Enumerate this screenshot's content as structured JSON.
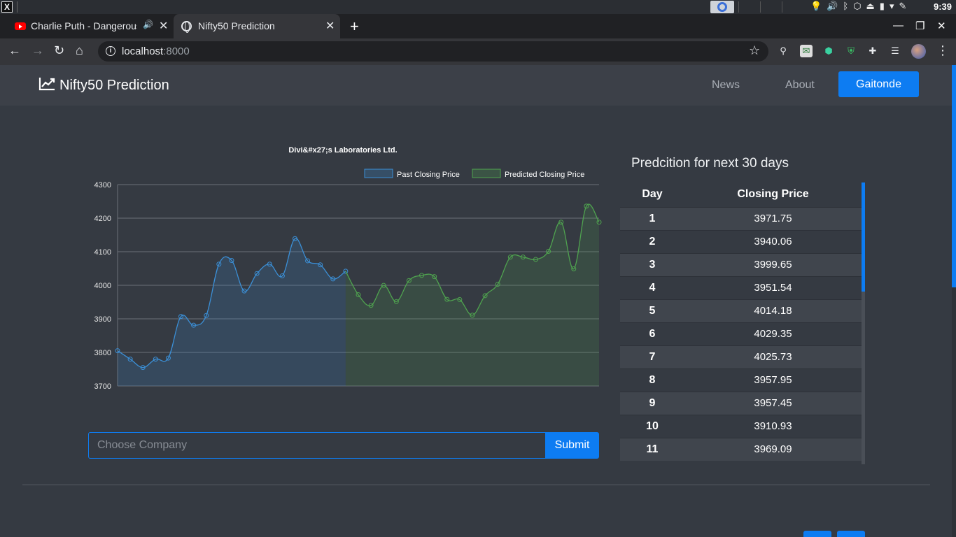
{
  "os": {
    "clock": "9:39"
  },
  "browser": {
    "tabs": [
      {
        "title": "Charlie Puth - Dangerously",
        "active": false,
        "audio": true
      },
      {
        "title": "Nifty50 Prediction",
        "active": true
      }
    ],
    "url_host": "localhost",
    "url_port": ":8000"
  },
  "navbar": {
    "brand": "Nifty50 Prediction",
    "links": [
      "News",
      "About"
    ],
    "user_button": "Gaitonde"
  },
  "colors": {
    "accent": "#0d7cf2",
    "past": "#3b8fd6",
    "predicted": "#4fa34f"
  },
  "chart_data": {
    "type": "line",
    "title": "Divi&#x27;s Laboratories Ltd.",
    "legend": [
      "Past Closing Price",
      "Predicted Closing Price"
    ],
    "legend_position": "top-right",
    "ylim": [
      3700,
      4300
    ],
    "yticks": [
      3700,
      3800,
      3900,
      4000,
      4100,
      4200,
      4300
    ],
    "grid": true,
    "series": [
      {
        "name": "Past Closing Price",
        "x_start": 0,
        "values": [
          3805,
          3780,
          3755,
          3780,
          3783,
          3907,
          3881,
          3910,
          4063,
          4074,
          3983,
          4035,
          4063,
          4028,
          4139,
          4073,
          4061,
          4019,
          4042
        ]
      },
      {
        "name": "Predicted Closing Price",
        "x_start": 18,
        "values": [
          4042,
          3971.75,
          3940.06,
          3999.65,
          3951.54,
          4014.18,
          4029.35,
          4025.73,
          3957.95,
          3957.45,
          3910.93,
          3969.09,
          4003,
          4084,
          4084,
          4077,
          4101,
          4188,
          4049,
          4236,
          4188
        ]
      }
    ]
  },
  "form": {
    "placeholder": "Choose Company",
    "submit": "Submit"
  },
  "prediction": {
    "title": "Predcition for next 30 days",
    "columns": [
      "Day",
      "Closing Price"
    ],
    "rows": [
      [
        "1",
        "3971.75"
      ],
      [
        "2",
        "3940.06"
      ],
      [
        "3",
        "3999.65"
      ],
      [
        "4",
        "3951.54"
      ],
      [
        "5",
        "4014.18"
      ],
      [
        "6",
        "4029.35"
      ],
      [
        "7",
        "4025.73"
      ],
      [
        "8",
        "3957.95"
      ],
      [
        "9",
        "3957.45"
      ],
      [
        "10",
        "3910.93"
      ],
      [
        "11",
        "3969.09"
      ]
    ]
  }
}
